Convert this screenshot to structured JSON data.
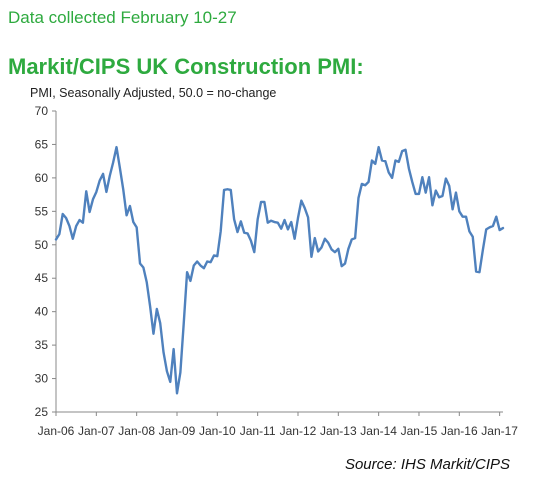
{
  "header": {
    "note": "Data collected February 10-27",
    "title": "Markit/CIPS UK Construction PMI:"
  },
  "footer": {
    "source": "Source: IHS Markit/CIPS"
  },
  "chart_data": {
    "type": "line",
    "title": "Markit/CIPS UK Construction PMI:",
    "subtitle": "PMI, Seasonally Adjusted, 50.0 = no-change",
    "xlabel": "",
    "ylabel": "",
    "ylim": [
      25,
      70
    ],
    "yticks": [
      25,
      30,
      35,
      40,
      45,
      50,
      55,
      60,
      65,
      70
    ],
    "xlim": [
      "2006-01",
      "2017-02"
    ],
    "xticks": [
      "Jan-06",
      "Jan-07",
      "Jan-08",
      "Jan-09",
      "Jan-10",
      "Jan-11",
      "Jan-12",
      "Jan-13",
      "Jan-14",
      "Jan-15",
      "Jan-16",
      "Jan-17"
    ],
    "grid": false,
    "color": "#4f81bd",
    "series": [
      {
        "start": "2006-01",
        "values": [
          50.8,
          51.6,
          54.6,
          54.0,
          52.8,
          50.9,
          52.8,
          53.7,
          53.3,
          58.0,
          54.9,
          56.8,
          57.9,
          59.6,
          60.6,
          57.9,
          60.3,
          62.3,
          64.6,
          61.5,
          58.3,
          54.4,
          55.8,
          53.4,
          52.6,
          47.2,
          46.6,
          44.4,
          40.8,
          36.7,
          40.4,
          38.3,
          33.9,
          31.1,
          29.5,
          34.4,
          27.8,
          30.9,
          38.2,
          45.9,
          44.6,
          46.9,
          47.5,
          46.9,
          46.5,
          47.5,
          47.4,
          48.4,
          48.3,
          52.0,
          58.2,
          58.3,
          58.2,
          53.8,
          51.9,
          53.5,
          51.8,
          51.7,
          50.6,
          48.9,
          53.8,
          56.4,
          56.4,
          53.3,
          53.6,
          53.4,
          53.3,
          52.4,
          53.7,
          52.3,
          53.4,
          50.9,
          54.0,
          56.6,
          55.5,
          54.1,
          48.2,
          51.0,
          49.0,
          49.6,
          50.9,
          50.3,
          49.3,
          48.9,
          49.4,
          46.8,
          47.2,
          49.4,
          50.8,
          51.0,
          57.0,
          59.1,
          58.9,
          59.4,
          62.6,
          62.1,
          64.6,
          62.6,
          62.5,
          60.8,
          60.0,
          62.6,
          62.4,
          64.0,
          64.2,
          61.4,
          59.4,
          57.6,
          57.6,
          60.1,
          57.8,
          60.1,
          55.9,
          58.1,
          57.1,
          57.3,
          59.9,
          58.8,
          55.3,
          57.8,
          55.0,
          54.2,
          54.2,
          52.0,
          51.2,
          46.0,
          45.9,
          49.2,
          52.3,
          52.6,
          52.8,
          54.2,
          52.2,
          52.5
        ]
      }
    ]
  }
}
